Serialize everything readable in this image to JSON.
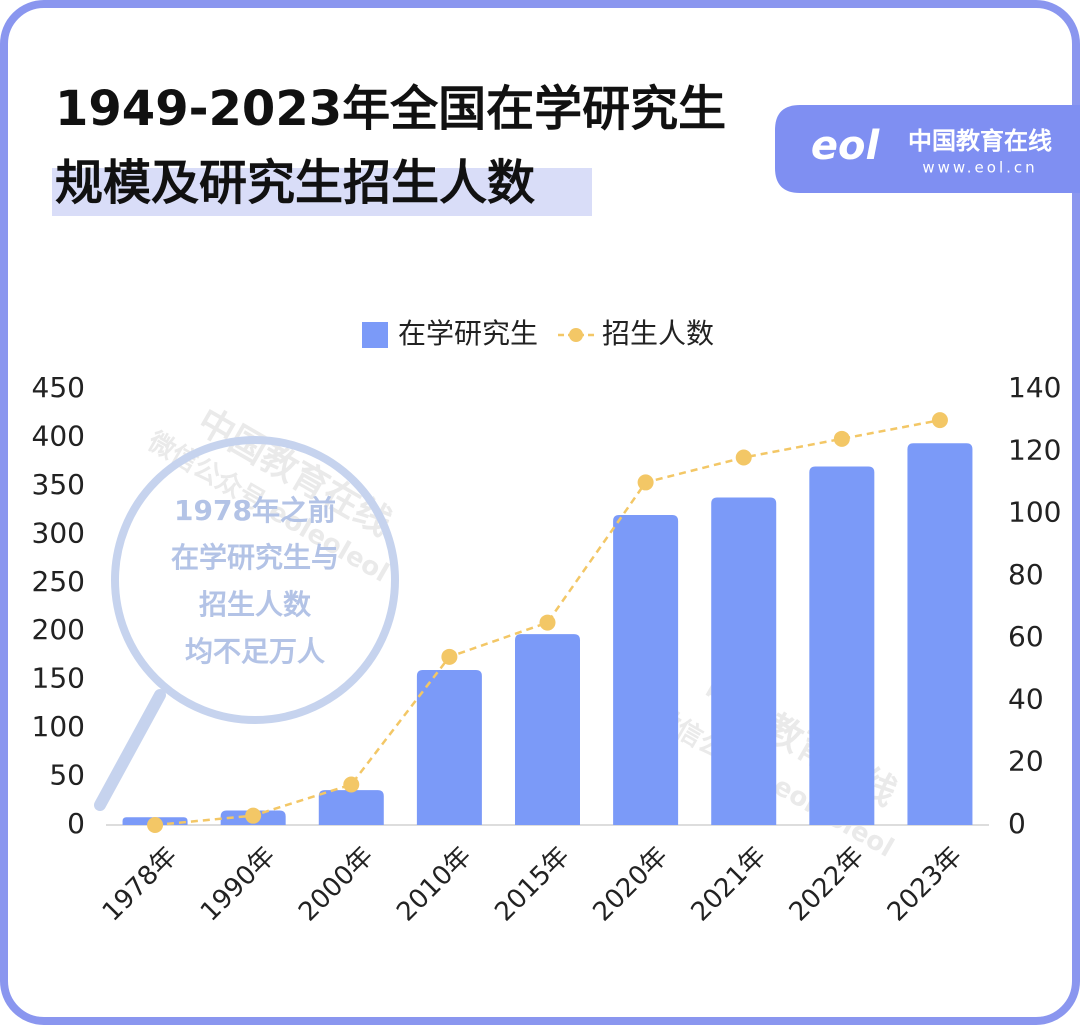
{
  "header": {
    "title_lines": [
      "1949-2023年全国在学研究生",
      "规模及研究生招生人数"
    ]
  },
  "logo": {
    "mark": "eol",
    "name": "中国教育在线",
    "url": "www.eol.cn"
  },
  "annotation": {
    "lines": [
      "1978年之前",
      "在学研究生与",
      "招生人数",
      "均不足万人"
    ]
  },
  "watermark": [
    "中国教育在线",
    "微信公众号 eoleoleol"
  ],
  "chart_data": {
    "type": "bar",
    "categories": [
      "1978年",
      "1990年",
      "2000年",
      "2010年",
      "2015年",
      "2020年",
      "2021年",
      "2022年",
      "2023年"
    ],
    "series": [
      {
        "name": "在学研究生",
        "type": "bar",
        "color": "#7b9af8",
        "values": [
          8,
          15,
          36,
          160,
          197,
          320,
          338,
          370,
          394
        ]
      },
      {
        "name": "招生人数",
        "type": "line",
        "axis": "y2",
        "color": "#f3c766",
        "values": [
          0,
          3,
          13,
          54,
          65,
          110,
          118,
          124,
          130
        ]
      }
    ],
    "ylim": [
      0,
      450
    ],
    "yticks": [
      0,
      50,
      100,
      150,
      200,
      250,
      300,
      350,
      400,
      450
    ],
    "y2lim": [
      0,
      140
    ],
    "y2ticks": [
      0,
      20,
      40,
      60,
      80,
      100,
      120,
      140
    ],
    "grid": false,
    "legend": "top"
  }
}
